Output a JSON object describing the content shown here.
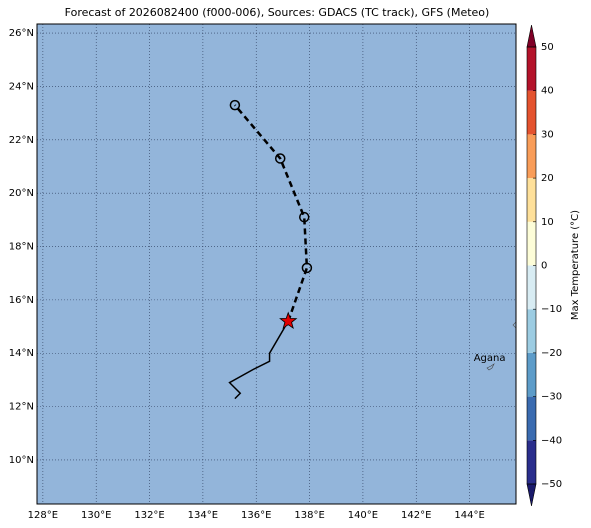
{
  "map": {
    "title": "Forecast of 2026082400 (f000-006), Sources: GDACS (TC track), GFS (Meteo)",
    "xlim": [
      127.78,
      145.74
    ],
    "ylim": [
      8.35,
      26.34
    ],
    "xticks": [
      {
        "value": 128,
        "label": "128°E"
      },
      {
        "value": 130,
        "label": "130°E"
      },
      {
        "value": 132,
        "label": "132°E"
      },
      {
        "value": 134,
        "label": "134°E"
      },
      {
        "value": 136,
        "label": "136°E"
      },
      {
        "value": 138,
        "label": "138°E"
      },
      {
        "value": 140,
        "label": "140°E"
      },
      {
        "value": 142,
        "label": "142°E"
      },
      {
        "value": 144,
        "label": "144°E"
      }
    ],
    "yticks": [
      {
        "value": 10,
        "label": "10°N"
      },
      {
        "value": 12,
        "label": "12°N"
      },
      {
        "value": 14,
        "label": "14°N"
      },
      {
        "value": 16,
        "label": "16°N"
      },
      {
        "value": 18,
        "label": "18°N"
      },
      {
        "value": 20,
        "label": "20°N"
      },
      {
        "value": 22,
        "label": "22°N"
      },
      {
        "value": 24,
        "label": "24°N"
      },
      {
        "value": 26,
        "label": "26°N"
      }
    ],
    "grid": true,
    "ocean_color": "#93b5da",
    "past_track": {
      "lon": [
        137.2,
        136.5,
        136.5,
        135.9,
        135.0,
        135.4,
        135.2
      ],
      "lat": [
        15.2,
        14.0,
        13.7,
        13.4,
        12.9,
        12.5,
        12.3
      ]
    },
    "forecast_track": {
      "lon": [
        137.2,
        137.9,
        137.8,
        136.9,
        135.2
      ],
      "lat": [
        15.2,
        17.2,
        19.1,
        21.3,
        23.3
      ]
    },
    "current_position": {
      "lon": 137.2,
      "lat": 15.2
    },
    "place": {
      "name": "Agana",
      "lon": 144.75,
      "lat": 13.45
    },
    "colorbar": {
      "label": "Max Temperature (°C)",
      "lim": [
        -50,
        50
      ],
      "ticks": [
        {
          "value": -50,
          "label": "−50"
        },
        {
          "value": -40,
          "label": "−40"
        },
        {
          "value": -30,
          "label": "−30"
        },
        {
          "value": -20,
          "label": "−20"
        },
        {
          "value": -10,
          "label": "−10"
        },
        0,
        10,
        20,
        30,
        40,
        50
      ],
      "colors": [
        "#2a2e8c",
        "#3a6bb0",
        "#5d9cc9",
        "#9ccce2",
        "#d8ecf3",
        "#fdfdd8",
        "#fee09a",
        "#f99d59",
        "#e4532f",
        "#b3122a"
      ],
      "under_color": "#1a1a6b",
      "over_color": "#7f0026"
    }
  }
}
